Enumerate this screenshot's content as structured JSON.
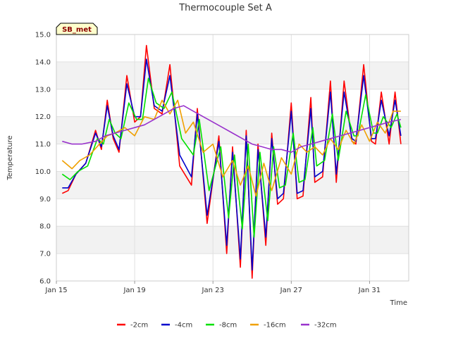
{
  "chart_data": {
    "type": "line",
    "title": "Thermocouple Set A",
    "xlabel": "Time",
    "ylabel": "Temperature",
    "badge": "SB_met",
    "x_ticks": [
      {
        "day": 0,
        "label": "Jan 15"
      },
      {
        "day": 4,
        "label": "Jan 19"
      },
      {
        "day": 8,
        "label": "Jan 23"
      },
      {
        "day": 12,
        "label": "Jan 27"
      },
      {
        "day": 16,
        "label": "Jan 31"
      }
    ],
    "xlim_days": [
      0,
      18
    ],
    "ylim": [
      6.0,
      15.0
    ],
    "y_ticks": [
      "6.0",
      "7.0",
      "8.0",
      "9.0",
      "10.0",
      "11.0",
      "12.0",
      "13.0",
      "14.0",
      "15.0"
    ],
    "grid": true,
    "legend_position": "bottom",
    "series": [
      {
        "name": "-2cm",
        "color": "#ff0000",
        "x": [
          0.3,
          0.6,
          1.0,
          1.5,
          2.0,
          2.3,
          2.6,
          2.9,
          3.2,
          3.6,
          4.0,
          4.3,
          4.6,
          5.0,
          5.4,
          5.8,
          6.3,
          6.9,
          7.2,
          7.7,
          8.3,
          8.7,
          9.0,
          9.4,
          9.7,
          10.0,
          10.3,
          10.7,
          11.0,
          11.3,
          11.6,
          12.0,
          12.3,
          12.6,
          13.0,
          13.2,
          13.6,
          14.0,
          14.3,
          14.7,
          15.1,
          15.3,
          15.7,
          16.1,
          16.3,
          16.6,
          17.0,
          17.3,
          17.6
        ],
        "y": [
          9.2,
          9.3,
          9.9,
          10.3,
          11.5,
          10.8,
          12.6,
          11.2,
          10.7,
          13.5,
          11.8,
          12.0,
          14.6,
          12.3,
          12.1,
          13.9,
          10.2,
          9.5,
          12.3,
          8.1,
          11.3,
          7.0,
          10.9,
          6.5,
          11.5,
          6.1,
          11.0,
          7.3,
          11.4,
          8.8,
          9.0,
          12.5,
          9.0,
          9.1,
          12.7,
          9.6,
          9.8,
          13.3,
          9.6,
          13.3,
          11.1,
          11.0,
          13.9,
          11.1,
          11.0,
          12.9,
          11.0,
          12.9,
          11.0
        ]
      },
      {
        "name": "-4cm",
        "color": "#0000cc",
        "x": [
          0.3,
          0.6,
          1.0,
          1.5,
          2.0,
          2.3,
          2.6,
          2.9,
          3.2,
          3.6,
          4.0,
          4.3,
          4.6,
          5.0,
          5.4,
          5.8,
          6.3,
          6.9,
          7.2,
          7.7,
          8.3,
          8.7,
          9.0,
          9.4,
          9.7,
          10.0,
          10.3,
          10.7,
          11.0,
          11.3,
          11.6,
          12.0,
          12.3,
          12.6,
          13.0,
          13.2,
          13.6,
          14.0,
          14.3,
          14.7,
          15.1,
          15.3,
          15.7,
          16.1,
          16.3,
          16.6,
          17.0,
          17.3,
          17.6
        ],
        "y": [
          9.4,
          9.4,
          9.9,
          10.3,
          11.4,
          10.9,
          12.4,
          11.3,
          10.8,
          13.2,
          12.0,
          12.0,
          14.1,
          12.4,
          12.2,
          13.5,
          10.6,
          9.8,
          12.1,
          8.4,
          11.1,
          7.3,
          10.7,
          6.8,
          11.3,
          6.4,
          10.8,
          7.6,
          11.2,
          9.0,
          9.2,
          12.2,
          9.2,
          9.3,
          12.3,
          9.8,
          10.0,
          12.9,
          9.9,
          12.9,
          11.2,
          11.1,
          13.5,
          11.2,
          11.2,
          12.6,
          11.3,
          12.6,
          11.3
        ]
      },
      {
        "name": "-8cm",
        "color": "#00e000",
        "x": [
          0.3,
          0.7,
          1.1,
          1.6,
          2.1,
          2.4,
          2.7,
          3.0,
          3.3,
          3.7,
          4.1,
          4.4,
          4.7,
          5.1,
          5.5,
          5.9,
          6.4,
          7.0,
          7.3,
          7.8,
          8.4,
          8.8,
          9.1,
          9.5,
          9.8,
          10.1,
          10.4,
          10.8,
          11.1,
          11.4,
          11.7,
          12.1,
          12.4,
          12.7,
          13.1,
          13.3,
          13.7,
          14.1,
          14.4,
          14.8,
          15.2,
          15.4,
          15.8,
          16.2,
          16.4,
          16.7,
          17.1,
          17.4,
          17.6
        ],
        "y": [
          9.9,
          9.7,
          10.0,
          10.2,
          11.2,
          11.0,
          11.9,
          11.4,
          11.2,
          12.5,
          11.9,
          11.9,
          13.4,
          12.5,
          12.3,
          12.9,
          11.2,
          10.6,
          11.9,
          9.3,
          10.9,
          8.3,
          10.6,
          7.9,
          11.0,
          7.6,
          10.7,
          8.2,
          10.9,
          9.4,
          9.5,
          11.4,
          9.6,
          9.7,
          11.6,
          10.2,
          10.4,
          12.1,
          10.4,
          12.2,
          11.3,
          11.3,
          12.8,
          11.4,
          11.4,
          12.0,
          11.6,
          12.1,
          11.6
        ]
      },
      {
        "name": "-16cm",
        "color": "#f0a000",
        "x": [
          0.3,
          0.8,
          1.2,
          1.7,
          2.2,
          2.6,
          3.0,
          3.5,
          4.0,
          4.5,
          5.0,
          5.4,
          5.8,
          6.2,
          6.6,
          7.0,
          7.5,
          8.0,
          8.5,
          9.0,
          9.4,
          9.8,
          10.2,
          10.6,
          11.0,
          11.5,
          12.0,
          12.4,
          12.8,
          13.2,
          13.6,
          14.0,
          14.4,
          14.8,
          15.2,
          15.6,
          16.0,
          16.4,
          16.8,
          17.2,
          17.6
        ],
        "y": [
          10.4,
          10.1,
          10.4,
          10.6,
          11.0,
          11.3,
          11.4,
          11.6,
          11.3,
          12.0,
          11.9,
          12.6,
          12.1,
          12.6,
          11.4,
          11.8,
          10.7,
          11.0,
          9.8,
          10.4,
          9.5,
          10.2,
          9.1,
          10.3,
          9.3,
          10.5,
          9.9,
          11.0,
          10.7,
          10.9,
          10.6,
          11.2,
          10.8,
          11.5,
          11.0,
          11.7,
          11.1,
          11.8,
          11.4,
          12.2,
          12.2
        ]
      },
      {
        "name": "-32cm",
        "color": "#9932cc",
        "x": [
          0.3,
          0.8,
          1.3,
          2.0,
          2.5,
          3.0,
          3.5,
          4.0,
          4.5,
          5.0,
          5.5,
          6.0,
          6.5,
          7.0,
          7.5,
          8.0,
          8.5,
          9.0,
          9.5,
          10.0,
          10.5,
          11.0,
          11.5,
          12.0,
          12.5,
          13.0,
          13.5,
          14.0,
          14.5,
          15.0,
          15.5,
          16.0,
          16.5,
          17.0,
          17.6
        ],
        "y": [
          11.1,
          11.0,
          11.0,
          11.1,
          11.3,
          11.4,
          11.5,
          11.6,
          11.7,
          11.9,
          12.1,
          12.3,
          12.4,
          12.2,
          12.0,
          11.8,
          11.6,
          11.4,
          11.2,
          11.0,
          10.9,
          10.8,
          10.8,
          10.7,
          10.9,
          11.0,
          11.1,
          11.2,
          11.3,
          11.4,
          11.5,
          11.6,
          11.7,
          11.8,
          11.9
        ]
      }
    ]
  }
}
